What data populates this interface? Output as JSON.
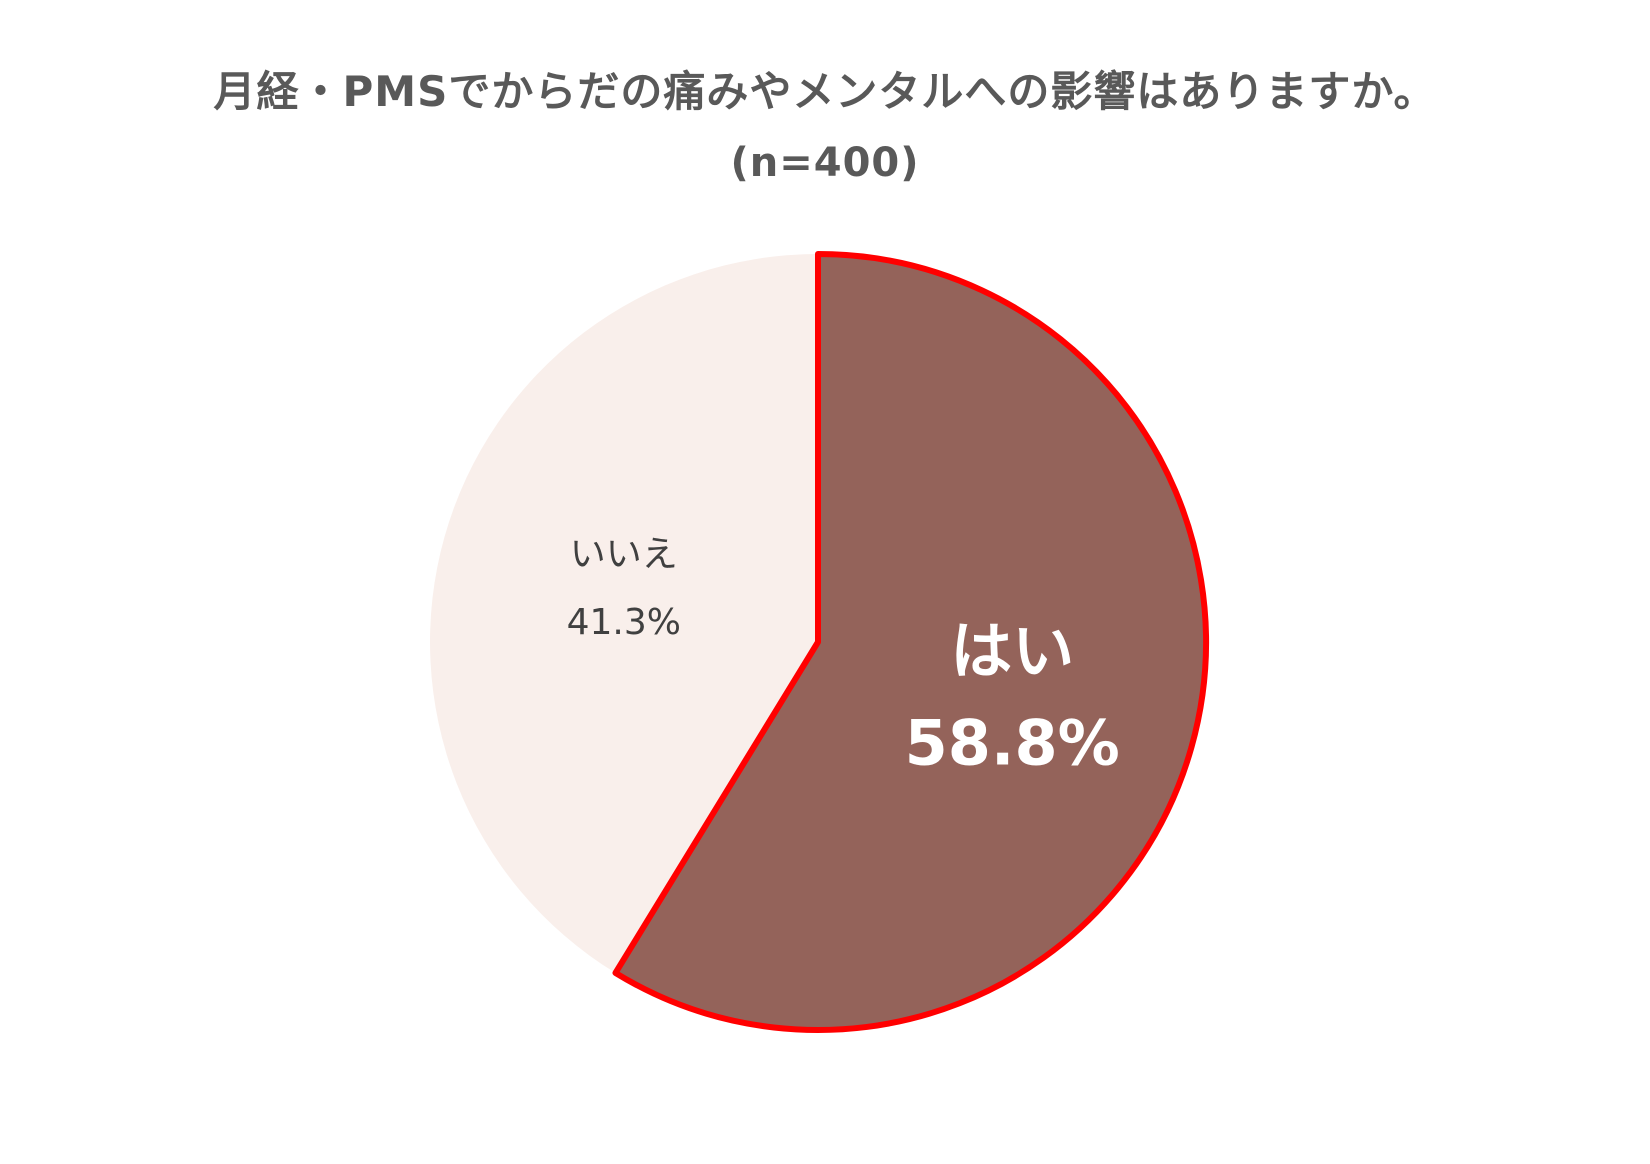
{
  "chart_data": {
    "type": "pie",
    "title": "月経・PMSでからだの痛みやメンタルへの影響はありますか。",
    "subtitle": "(n=400)",
    "slices": [
      {
        "label": "はい",
        "value": 58.8,
        "value_label": "58.8%",
        "color": "#94635a",
        "highlighted": true
      },
      {
        "label": "いいえ",
        "value": 41.3,
        "value_label": "41.3%",
        "color": "#f9efeb",
        "highlighted": false
      }
    ],
    "highlight_color": "#ff0000"
  }
}
